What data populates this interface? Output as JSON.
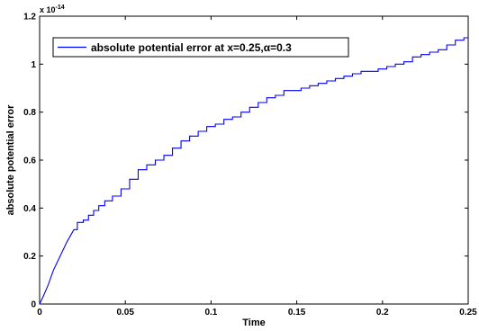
{
  "chart_data": {
    "type": "line",
    "title": "",
    "xlabel": "Time",
    "ylabel": "absolute potential error",
    "xlim": [
      0,
      0.25
    ],
    "ylim": [
      0,
      1.2
    ],
    "y_multiplier_text": "x 10",
    "y_multiplier_exp": "-14",
    "x_ticks": [
      0,
      0.05,
      0.1,
      0.15,
      0.2,
      0.25
    ],
    "x_tick_labels": [
      "0",
      "0.05",
      "0.1",
      "0.15",
      "0.2",
      "0.25"
    ],
    "y_ticks": [
      0,
      0.2,
      0.4,
      0.6,
      0.8,
      1.0,
      1.2
    ],
    "y_tick_labels": [
      "0",
      "0.2",
      "0.4",
      "0.6",
      "0.8",
      "1",
      "1.2"
    ],
    "grid": false,
    "legend_position": "top-left",
    "series": [
      {
        "name": "absolute potential error at x=0.25,α=0.3",
        "color": "#0000ff",
        "x": [
          0,
          0.002,
          0.005,
          0.008,
          0.012,
          0.016,
          0.02,
          0.024,
          0.027,
          0.03,
          0.033,
          0.036,
          0.04,
          0.045,
          0.05,
          0.055,
          0.06,
          0.065,
          0.07,
          0.075,
          0.08,
          0.085,
          0.09,
          0.095,
          0.1,
          0.105,
          0.11,
          0.115,
          0.12,
          0.125,
          0.13,
          0.135,
          0.14,
          0.145,
          0.15,
          0.155,
          0.16,
          0.165,
          0.17,
          0.175,
          0.18,
          0.185,
          0.19,
          0.195,
          0.2,
          0.205,
          0.21,
          0.215,
          0.22,
          0.225,
          0.23,
          0.235,
          0.24,
          0.245,
          0.25
        ],
        "y": [
          0,
          0.03,
          0.08,
          0.14,
          0.2,
          0.26,
          0.31,
          0.34,
          0.35,
          0.37,
          0.39,
          0.41,
          0.43,
          0.45,
          0.48,
          0.52,
          0.56,
          0.58,
          0.6,
          0.62,
          0.65,
          0.68,
          0.7,
          0.72,
          0.74,
          0.75,
          0.77,
          0.78,
          0.8,
          0.82,
          0.84,
          0.86,
          0.87,
          0.89,
          0.89,
          0.9,
          0.91,
          0.92,
          0.93,
          0.94,
          0.95,
          0.96,
          0.97,
          0.97,
          0.98,
          0.99,
          1.0,
          1.01,
          1.03,
          1.04,
          1.05,
          1.06,
          1.08,
          1.1,
          1.11
        ]
      }
    ]
  }
}
